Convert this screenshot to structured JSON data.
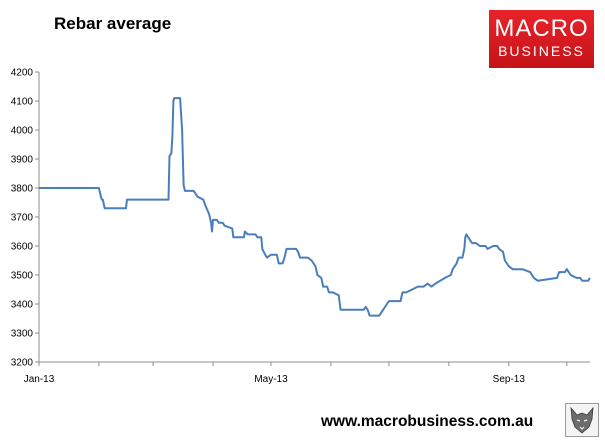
{
  "page": {
    "title": "Rebar average",
    "logo_line1": "MACRO",
    "logo_line2": "BUSINESS",
    "footer_url": "www.macrobusiness.com.au",
    "logo_color": "#d71920",
    "line_color": "#4a7ebb"
  },
  "icons": {
    "wolf": "wolf-emblem-icon"
  },
  "chart_data": {
    "type": "line",
    "title": "Rebar average",
    "xlabel": "",
    "ylabel": "",
    "ylim": [
      3200,
      4200
    ],
    "yticks": [
      3200,
      3300,
      3400,
      3500,
      3600,
      3700,
      3800,
      3900,
      4000,
      4100,
      4200
    ],
    "x_tick_labels": [
      "Jan-13",
      "May-13",
      "Sep-13"
    ],
    "grid": false,
    "legend": "none",
    "series": [
      {
        "values": [
          [
            0,
            3800
          ],
          [
            31,
            3800
          ],
          [
            32,
            3770
          ],
          [
            32.5,
            3760
          ],
          [
            33,
            3760
          ],
          [
            34,
            3730
          ],
          [
            45,
            3730
          ],
          [
            45.5,
            3760
          ],
          [
            67,
            3760
          ],
          [
            67.5,
            3910
          ],
          [
            68.5,
            3920
          ],
          [
            69,
            3980
          ],
          [
            69.5,
            4100
          ],
          [
            70,
            4110
          ],
          [
            73,
            4110
          ],
          [
            74,
            4000
          ],
          [
            74.8,
            3810
          ],
          [
            75.5,
            3790
          ],
          [
            80,
            3790
          ],
          [
            81,
            3780
          ],
          [
            82,
            3770
          ],
          [
            85,
            3760
          ],
          [
            86,
            3740
          ],
          [
            88,
            3710
          ],
          [
            89,
            3680
          ],
          [
            89.5,
            3650
          ],
          [
            90,
            3690
          ],
          [
            92,
            3690
          ],
          [
            93,
            3680
          ],
          [
            95,
            3680
          ],
          [
            96,
            3670
          ],
          [
            100,
            3660
          ],
          [
            100.5,
            3630
          ],
          [
            106,
            3630
          ],
          [
            106.5,
            3650
          ],
          [
            108,
            3640
          ],
          [
            112,
            3640
          ],
          [
            113,
            3630
          ],
          [
            115,
            3630
          ],
          [
            115.5,
            3590
          ],
          [
            117,
            3570
          ],
          [
            118,
            3560
          ],
          [
            120,
            3570
          ],
          [
            123,
            3570
          ],
          [
            124,
            3540
          ],
          [
            126,
            3540
          ],
          [
            127,
            3560
          ],
          [
            128,
            3590
          ],
          [
            133,
            3590
          ],
          [
            134,
            3580
          ],
          [
            135,
            3560
          ],
          [
            139,
            3560
          ],
          [
            141,
            3550
          ],
          [
            143,
            3530
          ],
          [
            144,
            3500
          ],
          [
            146,
            3490
          ],
          [
            147,
            3460
          ],
          [
            149,
            3460
          ],
          [
            150,
            3440
          ],
          [
            152,
            3440
          ],
          [
            155,
            3430
          ],
          [
            156,
            3380
          ],
          [
            168,
            3380
          ],
          [
            169,
            3390
          ],
          [
            170,
            3380
          ],
          [
            171,
            3360
          ],
          [
            176,
            3360
          ],
          [
            178,
            3380
          ],
          [
            180,
            3400
          ],
          [
            181,
            3410
          ],
          [
            187,
            3410
          ],
          [
            188,
            3440
          ],
          [
            190,
            3440
          ],
          [
            193,
            3450
          ],
          [
            196,
            3460
          ],
          [
            199,
            3460
          ],
          [
            201,
            3470
          ],
          [
            203,
            3460
          ],
          [
            205,
            3470
          ],
          [
            210,
            3490
          ],
          [
            213,
            3500
          ],
          [
            214,
            3520
          ],
          [
            216,
            3540
          ],
          [
            217,
            3560
          ],
          [
            219,
            3560
          ],
          [
            220,
            3590
          ],
          [
            220.5,
            3630
          ],
          [
            221,
            3640
          ],
          [
            222,
            3630
          ],
          [
            223,
            3620
          ],
          [
            224,
            3610
          ],
          [
            226,
            3610
          ],
          [
            228,
            3600
          ],
          [
            231,
            3600
          ],
          [
            232,
            3590
          ],
          [
            235,
            3600
          ],
          [
            237,
            3600
          ],
          [
            238,
            3590
          ],
          [
            240,
            3580
          ],
          [
            241,
            3550
          ],
          [
            243,
            3530
          ],
          [
            245,
            3520
          ],
          [
            250,
            3520
          ],
          [
            254,
            3510
          ],
          [
            256,
            3490
          ],
          [
            258,
            3480
          ],
          [
            268,
            3490
          ],
          [
            269,
            3510
          ],
          [
            272,
            3510
          ],
          [
            273,
            3520
          ],
          [
            275,
            3500
          ],
          [
            278,
            3490
          ],
          [
            280,
            3490
          ],
          [
            281,
            3480
          ],
          [
            284,
            3480
          ],
          [
            285,
            3490
          ]
        ]
      }
    ]
  }
}
